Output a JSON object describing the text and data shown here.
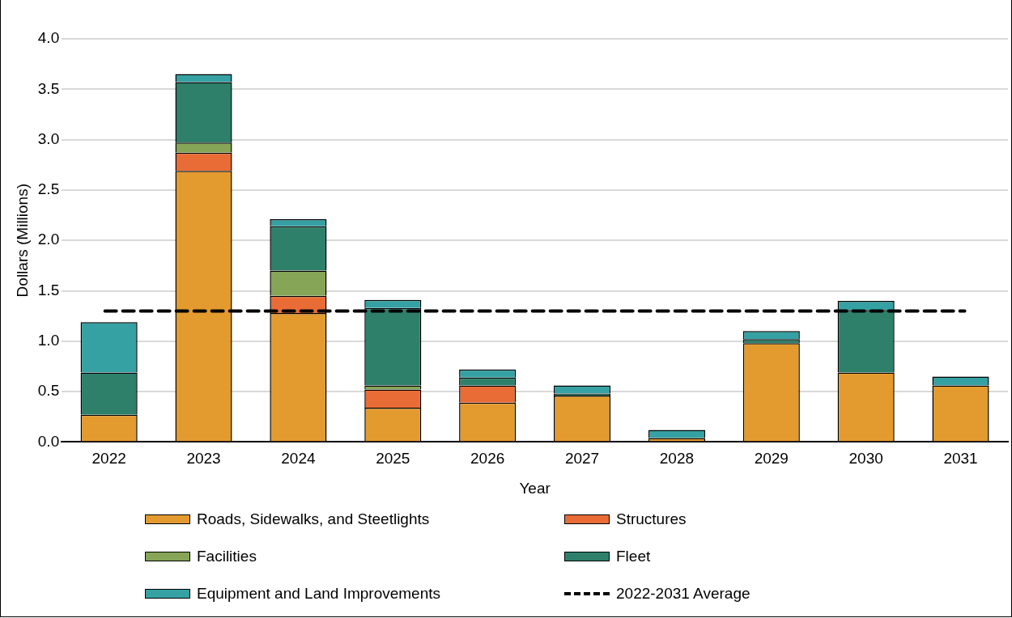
{
  "chart_data": {
    "type": "bar",
    "stacked": true,
    "xlabel": "Year",
    "ylabel": "Dollars (Millions)",
    "categories": [
      "2022",
      "2023",
      "2024",
      "2025",
      "2026",
      "2027",
      "2028",
      "2029",
      "2030",
      "2031"
    ],
    "series": [
      {
        "name": "Roads, Sidewalks, and Steetlights",
        "color": "#e39a2f",
        "values": [
          0.27,
          2.69,
          1.28,
          0.34,
          0.39,
          0.46,
          0.04,
          0.98,
          0.69,
          0.56
        ]
      },
      {
        "name": "Structures",
        "color": "#e96c36",
        "values": [
          0,
          0.18,
          0.17,
          0.18,
          0.17,
          0,
          0,
          0,
          0,
          0
        ]
      },
      {
        "name": "Facilities",
        "color": "#86a556",
        "values": [
          0,
          0.1,
          0.25,
          0.04,
          0,
          0,
          0,
          0,
          0,
          0
        ]
      },
      {
        "name": "Fleet",
        "color": "#2e806b",
        "values": [
          0.42,
          0.6,
          0.44,
          0.77,
          0.08,
          0.02,
          0,
          0.04,
          0.62,
          0
        ]
      },
      {
        "name": "Equipment and Land Improvements",
        "color": "#35a1a3",
        "values": [
          0.5,
          0.08,
          0.07,
          0.08,
          0.08,
          0.08,
          0.08,
          0.08,
          0.09,
          0.09
        ]
      }
    ],
    "ylim": [
      0,
      4
    ],
    "yticks": [
      {
        "value": 0,
        "label": "0.0"
      },
      {
        "value": 0.5,
        "label": "0.5"
      },
      {
        "value": 1,
        "label": "1.0"
      },
      {
        "value": 1.5,
        "label": "1.5"
      },
      {
        "value": 2,
        "label": "2.0"
      },
      {
        "value": 2.5,
        "label": "2.5"
      },
      {
        "value": 3,
        "label": "3.0"
      },
      {
        "value": 3.5,
        "label": "3.5"
      },
      {
        "value": 4,
        "label": "4.0"
      }
    ],
    "ref_lines": [
      {
        "axis": "y",
        "value": 1.3,
        "label": "2022-2031 Average",
        "color": "#000000",
        "line_style": "dashed"
      }
    ],
    "grid": "y",
    "legend": "bottom"
  }
}
